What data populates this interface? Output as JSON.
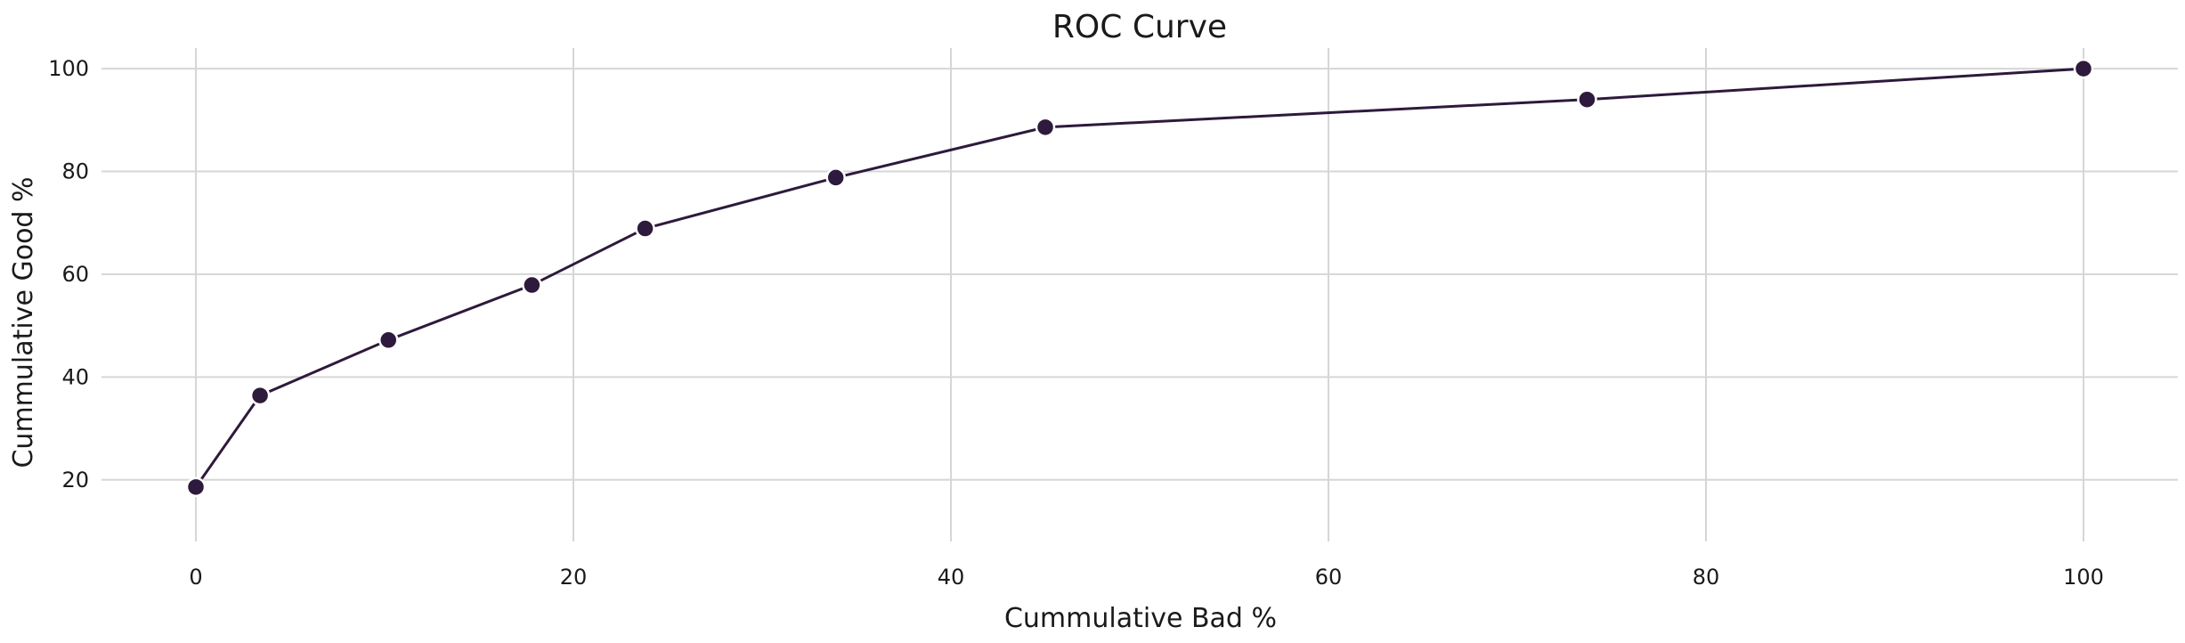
{
  "chart_data": {
    "type": "line",
    "title": "ROC Curve",
    "xlabel": "Cummulative Bad %",
    "ylabel": "Cummulative Good %",
    "xlim": [
      -5,
      105
    ],
    "ylim": [
      8,
      104
    ],
    "xticks": [
      0,
      20,
      40,
      60,
      80,
      100
    ],
    "yticks": [
      20,
      40,
      60,
      80,
      100
    ],
    "grid": true,
    "colors": {
      "series": "#2e1a3c",
      "grid": "#d6d6d6"
    },
    "series": [
      {
        "x": [
          0,
          3.4,
          10.2,
          17.8,
          23.8,
          33.9,
          45.0,
          73.7,
          100
        ],
        "y": [
          18.6,
          36.4,
          47.2,
          57.9,
          68.9,
          78.8,
          88.6,
          94.0,
          100
        ]
      }
    ]
  }
}
